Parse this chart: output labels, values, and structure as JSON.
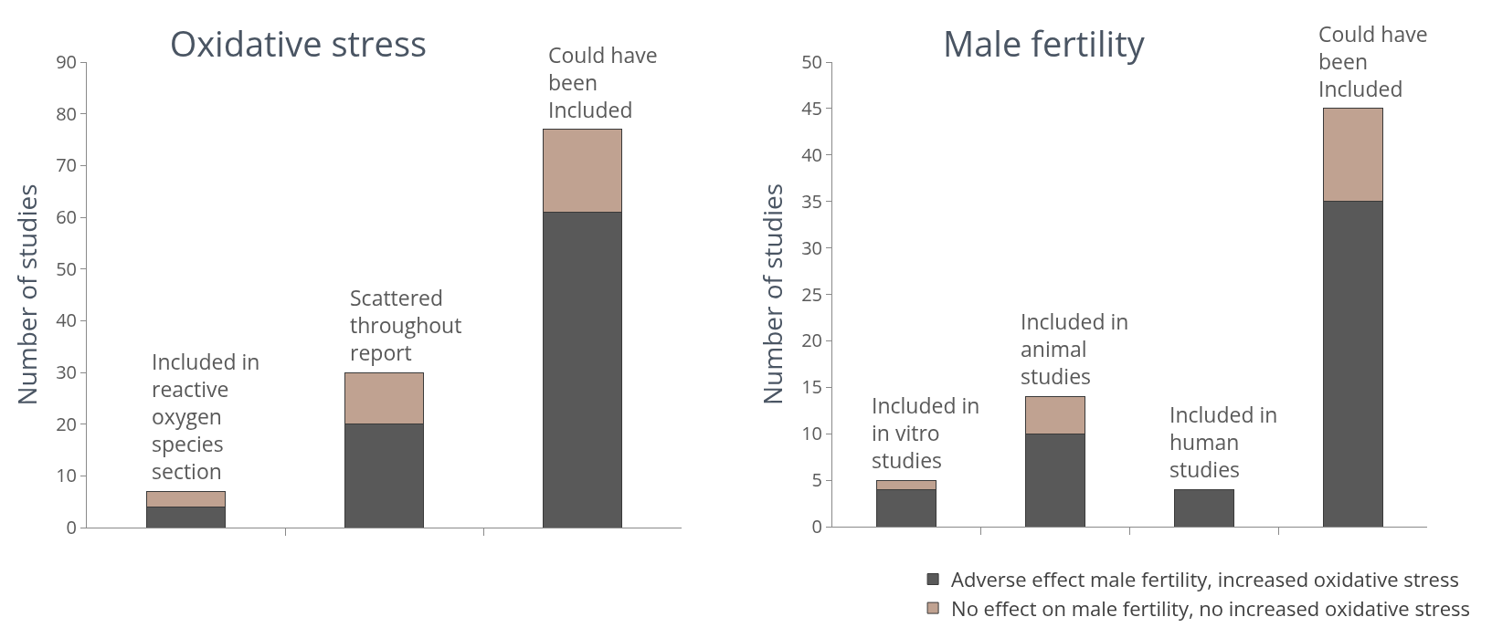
{
  "chart_data": [
    {
      "type": "bar",
      "title": "Oxidative stress",
      "ylabel": "Number of studies",
      "stacked": true,
      "tick_labels": "y",
      "legend": false,
      "grid": false,
      "categories": [
        "Included in reactive oxygen species section",
        "Scattered throughout report",
        "Could have been Included"
      ],
      "ylim": [
        0,
        90
      ],
      "yticks": [
        0,
        10,
        20,
        30,
        40,
        50,
        60,
        70,
        80,
        90
      ],
      "series": [
        {
          "color": "#595959",
          "values": [
            4,
            20,
            61
          ]
        },
        {
          "color": "#c0a291",
          "values": [
            3,
            10,
            16
          ]
        }
      ]
    },
    {
      "type": "bar",
      "title": "Male fertility",
      "ylabel": "Number of studies",
      "stacked": true,
      "tick_labels": "y",
      "legend": "bottom right",
      "grid": false,
      "categories": [
        "Included in in vitro studies",
        "Included in animal studies",
        "Included in human studies",
        "Could have been Included"
      ],
      "ylim": [
        0,
        50
      ],
      "yticks": [
        0,
        5,
        10,
        15,
        20,
        25,
        30,
        35,
        40,
        45,
        50
      ],
      "series": [
        {
          "name": "Adverse effect male fertility, increased oxidative stress",
          "color": "#595959",
          "values": [
            4,
            10,
            4,
            35
          ]
        },
        {
          "name": "No effect on male fertility, no increased oxidative stress",
          "color": "#c0a291",
          "values": [
            1,
            4,
            null,
            10
          ]
        }
      ]
    }
  ]
}
